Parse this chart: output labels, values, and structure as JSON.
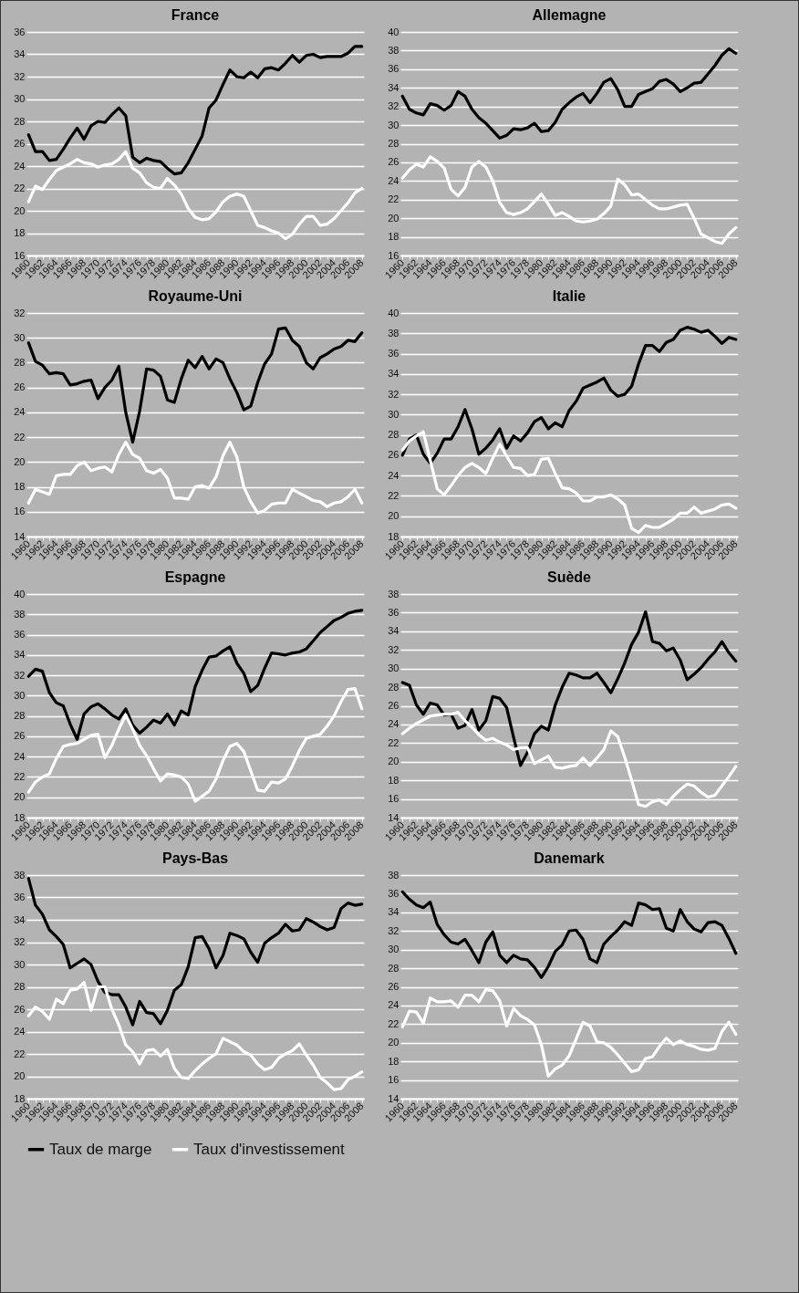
{
  "chart_data": [
    {
      "type": "line",
      "title": "France",
      "categories": [
        "1960",
        null,
        "1962",
        null,
        "1964",
        null,
        "1966",
        null,
        "1968",
        null,
        "1970",
        null,
        "1972",
        null,
        "1974",
        null,
        "1976",
        null,
        "1978",
        null,
        "1980",
        null,
        "1982",
        null,
        "1984",
        null,
        "1986",
        null,
        "1988",
        null,
        "1990",
        null,
        "1992",
        null,
        "1994",
        null,
        "1996",
        null,
        "1998",
        null,
        "2000",
        null,
        "2002",
        null,
        "2004",
        null,
        "2006",
        null,
        "2008"
      ],
      "ylim": [
        16,
        36
      ],
      "yticks": [
        16,
        18,
        20,
        22,
        24,
        26,
        28,
        30,
        32,
        34,
        36
      ],
      "grid": "y",
      "legend": "bottom",
      "series": [
        {
          "name": "Taux de marge",
          "color": "#000000",
          "values": [
            26.8,
            25.3,
            25.3,
            24.5,
            24.6,
            25.5,
            26.5,
            27.4,
            26.4,
            27.6,
            28.0,
            27.9,
            28.6,
            29.2,
            28.5,
            24.8,
            24.3,
            24.7,
            24.5,
            24.4,
            23.8,
            23.3,
            23.4,
            24.3,
            25.5,
            26.7,
            29.2,
            29.9,
            31.3,
            32.6,
            32.0,
            31.9,
            32.4,
            31.9,
            32.7,
            32.8,
            32.6,
            33.2,
            33.9,
            33.3,
            33.9,
            34.0,
            33.7,
            33.8,
            33.8,
            33.8,
            34.1,
            34.7,
            34.7
          ]
        },
        {
          "name": "Taux d'investissement",
          "color": "#ffffff",
          "values": [
            20.8,
            22.2,
            21.9,
            22.8,
            23.6,
            23.9,
            24.2,
            24.6,
            24.3,
            24.2,
            23.9,
            24.1,
            24.2,
            24.6,
            25.3,
            23.8,
            23.4,
            22.5,
            22.1,
            22.0,
            22.9,
            22.3,
            21.5,
            20.2,
            19.4,
            19.2,
            19.3,
            19.9,
            20.8,
            21.3,
            21.5,
            21.3,
            20.0,
            18.7,
            18.5,
            18.2,
            18.0,
            17.5,
            17.9,
            18.8,
            19.5,
            19.5,
            18.7,
            18.8,
            19.3,
            20.0,
            20.7,
            21.6,
            22.0
          ]
        }
      ]
    },
    {
      "type": "line",
      "title": "Allemagne",
      "categories": [
        "1960",
        null,
        "1962",
        null,
        "1964",
        null,
        "1966",
        null,
        "1968",
        null,
        "1970",
        null,
        "1972",
        null,
        "1974",
        null,
        "1976",
        null,
        "1978",
        null,
        "1980",
        null,
        "1982",
        null,
        "1984",
        null,
        "1986",
        null,
        "1988",
        null,
        "1990",
        null,
        "1992",
        null,
        "1994",
        null,
        "1996",
        null,
        "1998",
        null,
        "2000",
        null,
        "2002",
        null,
        "2004",
        null,
        "2006",
        null,
        "2008"
      ],
      "ylim": [
        16,
        40
      ],
      "yticks": [
        16,
        18,
        20,
        22,
        24,
        26,
        28,
        30,
        32,
        34,
        36,
        38,
        40
      ],
      "grid": "y",
      "legend": "bottom",
      "series": [
        {
          "name": "Taux de marge",
          "color": "#000000",
          "values": [
            33.1,
            31.7,
            31.3,
            31.1,
            32.3,
            32.1,
            31.6,
            32.1,
            33.6,
            33.1,
            31.7,
            30.8,
            30.2,
            29.4,
            28.6,
            28.9,
            29.6,
            29.5,
            29.7,
            30.2,
            29.3,
            29.4,
            30.3,
            31.7,
            32.4,
            33.0,
            33.4,
            32.4,
            33.4,
            34.6,
            35.0,
            33.8,
            32.0,
            32.0,
            33.3,
            33.6,
            33.9,
            34.7,
            34.9,
            34.4,
            33.6,
            34.0,
            34.5,
            34.6,
            35.5,
            36.4,
            37.5,
            38.2,
            37.7
          ]
        },
        {
          "name": "Taux d'investissement",
          "color": "#ffffff",
          "values": [
            24.3,
            25.2,
            25.8,
            25.5,
            26.6,
            26.1,
            25.4,
            23.1,
            22.4,
            23.3,
            25.5,
            26.1,
            25.5,
            24.0,
            21.7,
            20.6,
            20.4,
            20.6,
            21.0,
            21.8,
            22.6,
            21.5,
            20.3,
            20.6,
            20.2,
            19.7,
            19.6,
            19.7,
            19.9,
            20.5,
            21.3,
            24.2,
            23.6,
            22.5,
            22.6,
            22.0,
            21.4,
            21.0,
            21.0,
            21.2,
            21.4,
            21.5,
            20.0,
            18.3,
            17.9,
            17.5,
            17.3,
            18.3,
            19.0
          ]
        }
      ]
    },
    {
      "type": "line",
      "title": "Royaume-Uni",
      "categories": [
        "1960",
        null,
        "1962",
        null,
        "1964",
        null,
        "1966",
        null,
        "1968",
        null,
        "1970",
        null,
        "1972",
        null,
        "1974",
        null,
        "1976",
        null,
        "1978",
        null,
        "1980",
        null,
        "1982",
        null,
        "1984",
        null,
        "1986",
        null,
        "1988",
        null,
        "1990",
        null,
        "1992",
        null,
        "1994",
        null,
        "1996",
        null,
        "1998",
        null,
        "2000",
        null,
        "2002",
        null,
        "2004",
        null,
        "2006",
        null,
        "2008"
      ],
      "ylim": [
        14,
        32
      ],
      "yticks": [
        14,
        16,
        18,
        20,
        22,
        24,
        26,
        28,
        30,
        32
      ],
      "grid": "y",
      "legend": "bottom",
      "series": [
        {
          "name": "Taux de marge",
          "color": "#000000",
          "values": [
            29.6,
            28.1,
            27.8,
            27.1,
            27.2,
            27.1,
            26.2,
            26.3,
            26.5,
            26.6,
            25.1,
            26.0,
            26.6,
            27.7,
            24.0,
            21.6,
            24.1,
            27.5,
            27.4,
            26.9,
            25.0,
            24.8,
            26.7,
            28.2,
            27.6,
            28.5,
            27.5,
            28.3,
            28.0,
            26.7,
            25.6,
            24.2,
            24.5,
            26.4,
            27.9,
            28.7,
            30.7,
            30.8,
            29.8,
            29.3,
            28.0,
            27.5,
            28.4,
            28.7,
            29.1,
            29.3,
            29.8,
            29.7,
            30.4
          ]
        },
        {
          "name": "Taux d'investissement",
          "color": "#ffffff",
          "values": [
            16.7,
            17.8,
            17.6,
            17.4,
            18.9,
            19.0,
            19.0,
            19.7,
            20.0,
            19.3,
            19.5,
            19.6,
            19.2,
            20.6,
            21.6,
            20.6,
            20.3,
            19.3,
            19.1,
            19.4,
            18.7,
            17.1,
            17.1,
            17.0,
            18.0,
            18.1,
            17.9,
            18.8,
            20.5,
            21.6,
            20.4,
            18.0,
            16.8,
            15.9,
            16.1,
            16.6,
            16.7,
            16.7,
            17.8,
            17.5,
            17.2,
            16.9,
            16.8,
            16.4,
            16.7,
            16.8,
            17.2,
            17.8,
            16.7
          ]
        }
      ]
    },
    {
      "type": "line",
      "title": "Italie",
      "categories": [
        "1960",
        null,
        "1962",
        null,
        "1964",
        null,
        "1966",
        null,
        "1968",
        null,
        "1970",
        null,
        "1972",
        null,
        "1974",
        null,
        "1976",
        null,
        "1978",
        null,
        "1980",
        null,
        "1982",
        null,
        "1984",
        null,
        "1986",
        null,
        "1988",
        null,
        "1990",
        null,
        "1992",
        null,
        "1994",
        null,
        "1996",
        null,
        "1998",
        null,
        "2000",
        null,
        "2002",
        null,
        "2004",
        null,
        "2006",
        null,
        "2008"
      ],
      "ylim": [
        18,
        40
      ],
      "yticks": [
        18,
        20,
        22,
        24,
        26,
        28,
        30,
        32,
        34,
        36,
        38,
        40
      ],
      "grid": "y",
      "legend": "bottom",
      "series": [
        {
          "name": "Taux de marge",
          "color": "#000000",
          "values": [
            26.0,
            27.6,
            28.0,
            26.1,
            25.2,
            26.2,
            27.6,
            27.6,
            28.8,
            30.5,
            28.6,
            26.1,
            26.7,
            27.5,
            28.6,
            26.7,
            27.9,
            27.4,
            28.2,
            29.3,
            29.7,
            28.6,
            29.2,
            28.8,
            30.4,
            31.3,
            32.6,
            32.9,
            33.2,
            33.6,
            32.4,
            31.8,
            32.0,
            32.8,
            35.0,
            36.8,
            36.8,
            36.2,
            37.1,
            37.4,
            38.3,
            38.6,
            38.4,
            38.1,
            38.3,
            37.7,
            37.0,
            37.6,
            37.4
          ]
        },
        {
          "name": "Taux d'investissement",
          "color": "#ffffff",
          "values": [
            26.5,
            27.4,
            27.9,
            28.3,
            25.5,
            22.7,
            22.1,
            23.0,
            24.0,
            24.8,
            25.2,
            24.8,
            24.2,
            25.7,
            27.1,
            25.9,
            24.8,
            24.7,
            24.0,
            24.1,
            25.6,
            25.7,
            24.2,
            22.8,
            22.7,
            22.3,
            21.5,
            21.5,
            21.9,
            21.9,
            22.1,
            21.7,
            21.1,
            18.8,
            18.4,
            19.1,
            18.9,
            18.9,
            19.3,
            19.7,
            20.3,
            20.3,
            20.9,
            20.3,
            20.5,
            20.7,
            21.1,
            21.2,
            20.8
          ]
        }
      ]
    },
    {
      "type": "line",
      "title": "Espagne",
      "categories": [
        "1960",
        null,
        "1962",
        null,
        "1964",
        null,
        "1966",
        null,
        "1968",
        null,
        "1970",
        null,
        "1972",
        null,
        "1974",
        null,
        "1976",
        null,
        "1978",
        null,
        "1980",
        null,
        "1982",
        null,
        "1984",
        null,
        "1986",
        null,
        "1988",
        null,
        "1990",
        null,
        "1992",
        null,
        "1994",
        null,
        "1996",
        null,
        "1998",
        null,
        "2000",
        null,
        "2002",
        null,
        "2004",
        null,
        "2006",
        null,
        "2008"
      ],
      "ylim": [
        18,
        40
      ],
      "yticks": [
        18,
        20,
        22,
        24,
        26,
        28,
        30,
        32,
        34,
        36,
        38,
        40
      ],
      "grid": "y",
      "legend": "bottom",
      "series": [
        {
          "name": "Taux de marge",
          "color": "#000000",
          "values": [
            31.9,
            32.6,
            32.4,
            30.3,
            29.3,
            29.0,
            27.2,
            25.7,
            28.2,
            28.9,
            29.2,
            28.7,
            28.1,
            27.7,
            28.7,
            27.1,
            26.3,
            26.9,
            27.6,
            27.3,
            28.2,
            27.1,
            28.5,
            28.1,
            30.9,
            32.5,
            33.8,
            33.9,
            34.4,
            34.8,
            33.2,
            32.2,
            30.4,
            31.0,
            32.7,
            34.2,
            34.1,
            34.0,
            34.2,
            34.3,
            34.6,
            35.4,
            36.2,
            36.8,
            37.4,
            37.7,
            38.1,
            38.3,
            38.4
          ]
        },
        {
          "name": "Taux d'investissement",
          "color": "#ffffff",
          "values": [
            20.5,
            21.5,
            22.0,
            22.3,
            23.8,
            25.0,
            25.2,
            25.3,
            25.7,
            26.1,
            26.2,
            23.9,
            25.1,
            26.7,
            28.1,
            26.7,
            25.1,
            24.1,
            22.8,
            21.6,
            22.3,
            22.2,
            22.0,
            21.3,
            19.6,
            20.1,
            20.6,
            21.8,
            23.6,
            25.0,
            25.3,
            24.5,
            22.6,
            20.7,
            20.6,
            21.5,
            21.4,
            21.8,
            23.1,
            24.6,
            25.8,
            26.0,
            26.2,
            27.0,
            28.0,
            29.4,
            30.6,
            30.7,
            28.7
          ]
        }
      ]
    },
    {
      "type": "line",
      "title": "Suède",
      "categories": [
        "1960",
        null,
        "1962",
        null,
        "1964",
        null,
        "1966",
        null,
        "1968",
        null,
        "1970",
        null,
        "1972",
        null,
        "1974",
        null,
        "1976",
        null,
        "1978",
        null,
        "1980",
        null,
        "1982",
        null,
        "1984",
        null,
        "1986",
        null,
        "1988",
        null,
        "1990",
        null,
        "1992",
        null,
        "1994",
        null,
        "1996",
        null,
        "1998",
        null,
        "2000",
        null,
        "2002",
        null,
        "2004",
        null,
        "2006",
        null,
        "2008"
      ],
      "ylim": [
        14,
        38
      ],
      "yticks": [
        14,
        16,
        18,
        20,
        22,
        24,
        26,
        28,
        30,
        32,
        34,
        36,
        38
      ],
      "grid": "y",
      "legend": "bottom",
      "series": [
        {
          "name": "Taux de marge",
          "color": "#000000",
          "values": [
            28.5,
            28.2,
            26.1,
            25.1,
            26.3,
            26.1,
            25.0,
            25.1,
            23.6,
            23.9,
            25.6,
            23.4,
            24.4,
            27.0,
            26.8,
            25.8,
            22.6,
            19.6,
            21.0,
            23.0,
            23.8,
            23.4,
            26.1,
            28.0,
            29.5,
            29.3,
            29.0,
            29.0,
            29.5,
            28.5,
            27.4,
            28.9,
            30.6,
            32.6,
            33.9,
            36.1,
            32.9,
            32.7,
            31.9,
            32.2,
            30.9,
            28.8,
            29.4,
            30.1,
            31.0,
            31.8,
            32.9,
            31.7,
            30.8
          ]
        },
        {
          "name": "Taux d'investissement",
          "color": "#ffffff",
          "values": [
            23.0,
            23.6,
            24.1,
            24.5,
            24.9,
            25.0,
            25.1,
            25.1,
            25.3,
            24.4,
            23.7,
            22.9,
            22.3,
            22.5,
            22.1,
            21.8,
            21.3,
            21.5,
            21.5,
            19.8,
            20.2,
            20.6,
            19.4,
            19.3,
            19.5,
            19.6,
            20.4,
            19.6,
            20.4,
            21.3,
            23.3,
            22.7,
            20.5,
            18.0,
            15.4,
            15.2,
            15.7,
            15.9,
            15.4,
            16.3,
            17.0,
            17.6,
            17.4,
            16.7,
            16.2,
            16.4,
            17.4,
            18.4,
            19.5
          ]
        }
      ]
    },
    {
      "type": "line",
      "title": "Pays-Bas",
      "categories": [
        "1960",
        null,
        "1962",
        null,
        "1964",
        null,
        "1966",
        null,
        "1968",
        null,
        "1970",
        null,
        "1972",
        null,
        "1974",
        null,
        "1976",
        null,
        "1978",
        null,
        "1980",
        null,
        "1982",
        null,
        "1984",
        null,
        "1986",
        null,
        "1988",
        null,
        "1990",
        null,
        "1992",
        null,
        "1994",
        null,
        "1996",
        null,
        "1998",
        null,
        "2000",
        null,
        "2002",
        null,
        "2004",
        null,
        "2006",
        null,
        "2008"
      ],
      "ylim": [
        18,
        38
      ],
      "yticks": [
        18,
        20,
        22,
        24,
        26,
        28,
        30,
        32,
        34,
        36,
        38
      ],
      "grid": "y",
      "legend": "bottom",
      "series": [
        {
          "name": "Taux de marge",
          "color": "#000000",
          "values": [
            37.7,
            35.3,
            34.5,
            33.1,
            32.5,
            31.8,
            29.7,
            30.1,
            30.5,
            30.0,
            28.5,
            27.5,
            27.3,
            27.3,
            26.2,
            24.6,
            26.7,
            25.7,
            25.6,
            24.7,
            25.9,
            27.7,
            28.2,
            29.8,
            32.4,
            32.5,
            31.4,
            29.7,
            30.8,
            32.8,
            32.6,
            32.3,
            31.1,
            30.2,
            31.9,
            32.4,
            32.8,
            33.6,
            33.0,
            33.1,
            34.1,
            33.8,
            33.4,
            33.1,
            33.3,
            35.0,
            35.5,
            35.3,
            35.4
          ]
        },
        {
          "name": "Taux d'investissement",
          "color": "#ffffff",
          "values": [
            25.4,
            26.2,
            25.8,
            25.1,
            26.9,
            26.5,
            27.7,
            27.8,
            28.4,
            25.9,
            28.0,
            28.0,
            26.0,
            24.6,
            22.8,
            22.2,
            21.1,
            22.3,
            22.4,
            21.8,
            22.4,
            20.7,
            19.9,
            19.8,
            20.5,
            21.1,
            21.6,
            22.0,
            23.4,
            23.1,
            22.8,
            22.2,
            21.9,
            21.1,
            20.6,
            20.8,
            21.6,
            22.0,
            22.3,
            22.9,
            21.9,
            21.0,
            19.9,
            19.4,
            18.8,
            18.9,
            19.7,
            20.0,
            20.4
          ]
        }
      ]
    },
    {
      "type": "line",
      "title": "Danemark",
      "categories": [
        "1960",
        null,
        "1962",
        null,
        "1964",
        null,
        "1966",
        null,
        "1968",
        null,
        "1970",
        null,
        "1972",
        null,
        "1974",
        null,
        "1976",
        null,
        "1978",
        null,
        "1980",
        null,
        "1982",
        null,
        "1984",
        null,
        "1986",
        null,
        "1988",
        null,
        "1990",
        null,
        "1992",
        null,
        "1994",
        null,
        "1996",
        null,
        "1998",
        null,
        "2000",
        null,
        "2002",
        null,
        "2004",
        null,
        "2006",
        null,
        "2008"
      ],
      "ylim": [
        14,
        38
      ],
      "yticks": [
        14,
        16,
        18,
        20,
        22,
        24,
        26,
        28,
        30,
        32,
        34,
        36,
        38
      ],
      "grid": "y",
      "legend": "bottom",
      "series": [
        {
          "name": "Taux de marge",
          "color": "#000000",
          "values": [
            36.2,
            35.4,
            34.8,
            34.5,
            35.1,
            32.7,
            31.6,
            30.8,
            30.6,
            31.1,
            29.9,
            28.6,
            30.8,
            31.9,
            29.4,
            28.6,
            29.4,
            29.0,
            28.9,
            28.1,
            27.0,
            28.2,
            29.8,
            30.5,
            32.0,
            32.1,
            31.1,
            29.0,
            28.6,
            30.6,
            31.4,
            32.1,
            33.0,
            32.6,
            35.0,
            34.8,
            34.3,
            34.4,
            32.3,
            32.0,
            34.3,
            33.0,
            32.2,
            31.9,
            32.9,
            33.0,
            32.6,
            31.2,
            29.6
          ]
        },
        {
          "name": "Taux d'investissement",
          "color": "#ffffff",
          "values": [
            21.7,
            23.4,
            23.3,
            22.1,
            24.8,
            24.4,
            24.4,
            24.5,
            23.8,
            25.1,
            25.1,
            24.4,
            25.7,
            25.6,
            24.5,
            21.8,
            23.7,
            22.9,
            22.5,
            21.9,
            19.8,
            16.4,
            17.2,
            17.6,
            18.6,
            20.4,
            22.2,
            21.8,
            20.1,
            20.0,
            19.5,
            18.7,
            17.8,
            16.9,
            17.1,
            18.3,
            18.5,
            19.6,
            20.5,
            19.8,
            20.2,
            19.8,
            19.6,
            19.3,
            19.2,
            19.4,
            21.2,
            22.2,
            20.9
          ]
        }
      ]
    }
  ]
}
